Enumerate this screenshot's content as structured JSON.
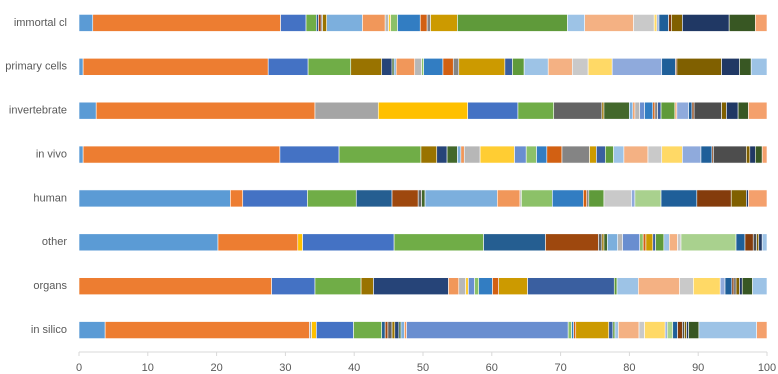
{
  "chart_data": {
    "type": "stacked-bar-horizontal",
    "categories": [
      "immortal cl",
      "primary cells",
      "invertebrate",
      "in vivo",
      "human",
      "other",
      "organs",
      "in silico"
    ],
    "xlim": [
      0,
      100
    ],
    "xticks": [
      0,
      10,
      20,
      30,
      40,
      50,
      60,
      70,
      80,
      90,
      100
    ],
    "series": [
      {
        "color": "#5b9bd5",
        "values": [
          2,
          0.6,
          2.5,
          0.6,
          22,
          20.2,
          0,
          3.8
        ]
      },
      {
        "color": "#ed7d31",
        "values": [
          27.3,
          26.9,
          31.8,
          28.6,
          1.8,
          11.6,
          28,
          29.7
        ]
      },
      {
        "color": "#a5a5a5",
        "values": [
          0,
          0,
          9.2,
          0,
          0,
          0,
          0,
          0.3
        ]
      },
      {
        "color": "#ffc000",
        "values": [
          0,
          0,
          13,
          0,
          0,
          0.7,
          0,
          0.7
        ]
      },
      {
        "color": "#4472c4",
        "values": [
          3.7,
          5.8,
          7.3,
          8.6,
          9.4,
          13.3,
          6.3,
          5.4
        ]
      },
      {
        "color": "#70ad47",
        "values": [
          1.5,
          6.2,
          5.2,
          11.9,
          7.1,
          13,
          6.7,
          4.1
        ]
      },
      {
        "color": "#255e91",
        "values": [
          0.3,
          0,
          0,
          0,
          5.2,
          9,
          0,
          0.5
        ]
      },
      {
        "color": "#9e480e",
        "values": [
          0.4,
          0,
          0,
          0,
          3.8,
          7.7,
          0,
          0.4
        ]
      },
      {
        "color": "#636363",
        "values": [
          0.2,
          0,
          7,
          0,
          0.5,
          0.5,
          0,
          0.6
        ]
      },
      {
        "color": "#997300",
        "values": [
          0.6,
          4.5,
          0.3,
          2.3,
          0,
          0.3,
          1.8,
          0.4
        ]
      },
      {
        "color": "#264478",
        "values": [
          0,
          1.5,
          0,
          1.5,
          0,
          0,
          10.9,
          0.6
        ]
      },
      {
        "color": "#43682b",
        "values": [
          0,
          0.3,
          3.7,
          1.5,
          0.5,
          0.5,
          0,
          0.3
        ]
      },
      {
        "color": "#7cafdd",
        "values": [
          5.2,
          0.3,
          0.5,
          0.5,
          10.5,
          1.5,
          0,
          0.5
        ]
      },
      {
        "color": "#f1975a",
        "values": [
          3.3,
          2.7,
          0.3,
          0.5,
          3.3,
          0,
          1.5,
          0.3
        ]
      },
      {
        "color": "#b7b7b7",
        "values": [
          0.5,
          1,
          0.7,
          2.3,
          0.2,
          0.7,
          1,
          0
        ]
      },
      {
        "color": "#ffcd33",
        "values": [
          0.3,
          0,
          0,
          5,
          0,
          0,
          0.4,
          0
        ]
      },
      {
        "color": "#698ed0",
        "values": [
          0,
          0,
          0.7,
          1.7,
          0,
          2.5,
          0.9,
          23.5
        ]
      },
      {
        "color": "#8cc168",
        "values": [
          1,
          0.3,
          0,
          1.5,
          4.5,
          0.5,
          0.6,
          0.5
        ]
      },
      {
        "color": "#327dc2",
        "values": [
          3.3,
          2.8,
          1.2,
          1.5,
          4.5,
          0,
          2,
          0.3
        ]
      },
      {
        "color": "#d26012",
        "values": [
          1,
          1.5,
          0.3,
          2.2,
          0.5,
          0.4,
          0.9,
          0.3
        ]
      },
      {
        "color": "#848484",
        "values": [
          0.5,
          0.8,
          0.4,
          4,
          0.3,
          0,
          0,
          0
        ]
      },
      {
        "color": "#cc9a00",
        "values": [
          3.9,
          6.7,
          0,
          1,
          0,
          1,
          4.2,
          4.8
        ]
      },
      {
        "color": "#3a5fa0",
        "values": [
          0,
          1.1,
          0.5,
          1.3,
          0,
          0.4,
          12.6,
          0.6
        ]
      },
      {
        "color": "#5f9a3a",
        "values": [
          16,
          1.7,
          2,
          1.2,
          2.2,
          1.2,
          0.4,
          0.3
        ]
      },
      {
        "color": "#9dc3e6",
        "values": [
          2.5,
          3.5,
          0,
          1.5,
          0,
          0.8,
          3.1,
          0.5
        ]
      },
      {
        "color": "#f4b183",
        "values": [
          7.1,
          3.5,
          0.3,
          3.5,
          0,
          1.2,
          6,
          3
        ]
      },
      {
        "color": "#c9c9c9",
        "values": [
          3,
          2.3,
          0,
          2,
          4,
          0.5,
          2,
          0.8
        ]
      },
      {
        "color": "#ffd966",
        "values": [
          0.4,
          3.5,
          0,
          3,
          0,
          0,
          3.9,
          3
        ]
      },
      {
        "color": "#8faadc",
        "values": [
          0.3,
          7.2,
          1.7,
          2.7,
          0.5,
          0,
          0.7,
          0.3
        ]
      },
      {
        "color": "#a9d18e",
        "values": [
          0,
          0,
          0,
          0,
          3.8,
          8,
          0,
          0.8
        ]
      },
      {
        "color": "#1f5f99",
        "values": [
          1.4,
          2,
          0.5,
          1.6,
          5.2,
          1.3,
          1,
          0.7
        ]
      },
      {
        "color": "#843c0c",
        "values": [
          0.4,
          0.2,
          0.3,
          0.2,
          5,
          1.2,
          0.3,
          0.7
        ]
      },
      {
        "color": "#4d4d4d",
        "values": [
          0,
          0,
          4,
          4.8,
          0,
          0.5,
          0.3,
          0.3
        ]
      },
      {
        "color": "#806000",
        "values": [
          1.6,
          6.5,
          0.7,
          0.5,
          2.2,
          0.3,
          0.5,
          0.3
        ]
      },
      {
        "color": "#203864",
        "values": [
          6.8,
          2.6,
          1.7,
          0.8,
          0.3,
          0.5,
          0.4,
          0.3
        ]
      },
      {
        "color": "#385723",
        "values": [
          3.8,
          1.7,
          1.5,
          1,
          0,
          0,
          1.5,
          1.5
        ]
      },
      {
        "color": "#9dc3e6",
        "values": [
          0,
          2.3,
          0,
          0,
          0,
          0.7,
          2.1,
          8.4
        ]
      },
      {
        "color": "#f4a06c",
        "values": [
          1.7,
          0,
          2.7,
          0.7,
          2.7,
          0,
          0,
          1.5
        ]
      }
    ]
  }
}
